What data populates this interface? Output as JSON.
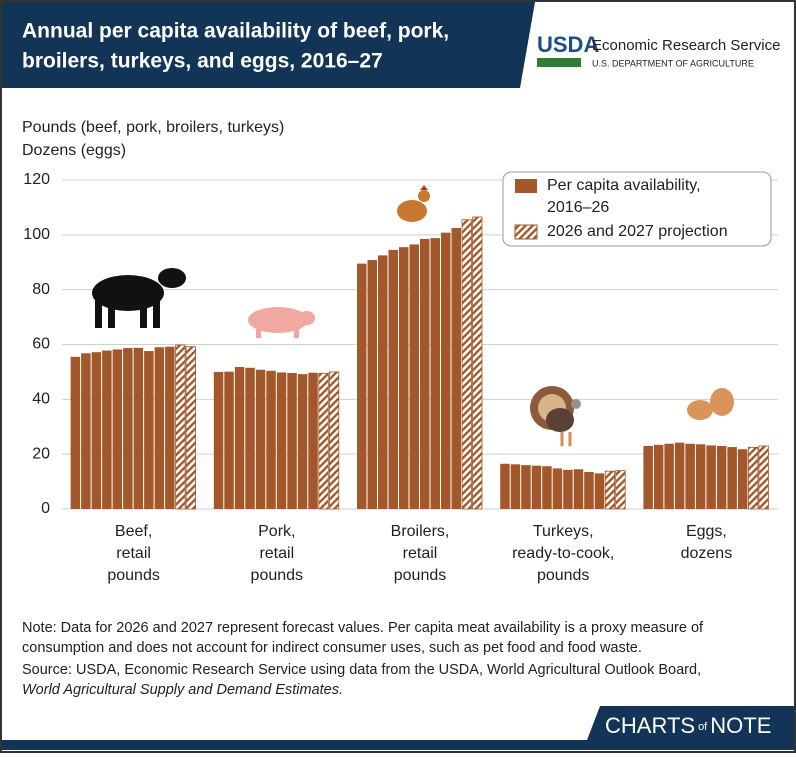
{
  "header": {
    "title": [
      "Annual per capita availability of beef, pork,",
      "broilers, turkeys, and eggs, 2016–27"
    ],
    "agency_logo": "USDA",
    "agency": "Economic Research Service",
    "department": "U.S. DEPARTMENT OF AGRICULTURE"
  },
  "chart_data": {
    "type": "grouped-bar",
    "y_label": [
      "Pounds (beef, pork, broilers, turkeys)",
      "Dozens (eggs)"
    ],
    "categories": [
      [
        "Beef,",
        "retail",
        "pounds"
      ],
      [
        "Pork,",
        "retail",
        "pounds"
      ],
      [
        "Broilers,",
        "retail",
        "pounds"
      ],
      [
        "Turkeys,",
        "ready-to-cook,",
        "pounds"
      ],
      [
        "Eggs,",
        "dozens"
      ]
    ],
    "series": [
      {
        "name": [
          "Per capita availability,",
          "2016–26"
        ],
        "color": "#a3582b",
        "hatched": false,
        "values": [
          [
            55.5,
            56.8,
            57.2,
            57.8,
            58.2,
            58.7,
            58.8,
            57.6,
            59.0,
            59.2
          ],
          [
            50.0,
            50.1,
            51.8,
            51.5,
            50.8,
            50.4,
            49.8,
            49.6,
            49.2,
            49.7
          ],
          [
            89.5,
            90.8,
            92.5,
            94.5,
            95.5,
            96.5,
            98.5,
            98.8,
            100.8,
            102.5
          ],
          [
            16.5,
            16.3,
            16.0,
            15.8,
            15.6,
            14.8,
            14.3,
            14.5,
            13.5,
            13.0
          ],
          [
            23.0,
            23.4,
            23.8,
            24.2,
            23.8,
            23.6,
            23.2,
            23.0,
            22.6,
            21.8
          ]
        ]
      },
      {
        "name": [
          "2026 and 2027 projection"
        ],
        "color": "#a3582b",
        "hatched": true,
        "values": [
          [
            59.8,
            59.2
          ],
          [
            49.5,
            50.0
          ],
          [
            105.5,
            106.5
          ],
          [
            13.8,
            14.0
          ],
          [
            22.5,
            23.0
          ]
        ]
      }
    ],
    "ylim": [
      0,
      120
    ],
    "yticks": [
      0,
      20,
      40,
      60,
      80,
      100,
      120
    ],
    "grid": true
  },
  "notes": {
    "note": [
      "Note: Data for 2026 and 2027 represent forecast values. Per capita meat availability is a proxy measure of",
      "consumption and does not account for indirect consumer uses, such as pet food and food waste."
    ],
    "source": "Source: USDA, Economic Research Service using data from the USDA, World Agricultural Outlook Board,",
    "source_italic": "World Agricultural Supply and Demand Estimates."
  },
  "footer": {
    "brand_1": "CHARTS",
    "brand_2": "of",
    "brand_3": "NOTE"
  }
}
